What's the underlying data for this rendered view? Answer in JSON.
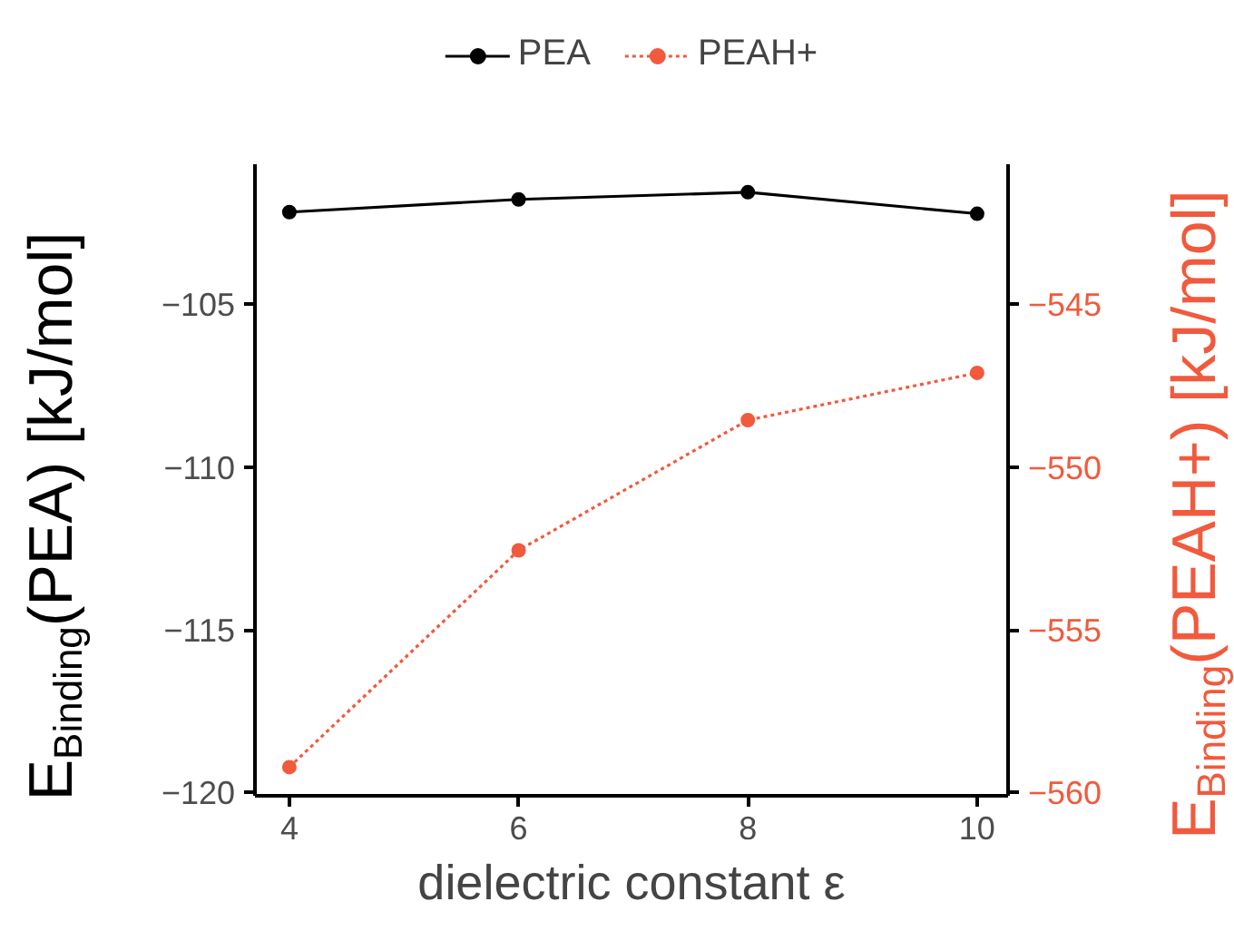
{
  "chart_data": {
    "type": "line",
    "x": [
      4,
      6,
      8,
      10
    ],
    "xlim": [
      3.7,
      10.27
    ],
    "xticks": [
      4,
      6,
      8,
      10
    ],
    "xlabel": "dielectric constant ε",
    "ylabel": "E$_{Binding}$(PEA) [kJ/mol]",
    "y2label": "E$_{Binding}$(PEAH+) [kJ/mol]",
    "ylim": [
      -120.1,
      -100.7
    ],
    "yticks": [
      {
        "value": -120,
        "label": "−120"
      },
      {
        "value": -115,
        "label": "−115"
      },
      {
        "value": -110,
        "label": "−110"
      },
      {
        "value": -105,
        "label": "−105"
      }
    ],
    "y2lim": [
      -560.1,
      -540.7
    ],
    "y2ticks": [
      {
        "value": -560,
        "label": "−560"
      },
      {
        "value": -555,
        "label": "−555"
      },
      {
        "value": -550,
        "label": "−550"
      },
      {
        "value": -545,
        "label": "−545"
      }
    ],
    "grid": false,
    "legend": "top",
    "marker": "circle",
    "series": [
      {
        "name": "PEA",
        "color": "#000000",
        "line_style": "solid",
        "values": [
          -102.17,
          -101.78,
          -101.56,
          -102.22
        ]
      },
      {
        "name": "PEAH+",
        "color": "#f15a3d",
        "line_style": "dotted",
        "axis": "y2",
        "values": [
          -559.22,
          -552.56,
          -548.56,
          -547.11
        ]
      }
    ]
  }
}
